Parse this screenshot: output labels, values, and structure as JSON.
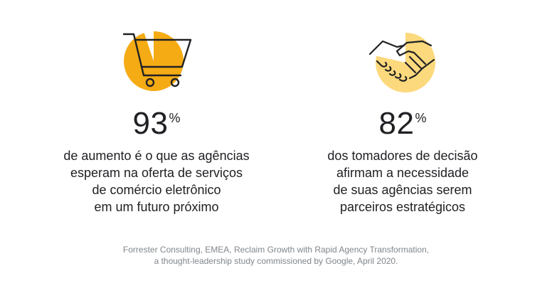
{
  "stats": [
    {
      "icon": "shopping-cart-icon",
      "accent": "#f5ab14",
      "value": "93",
      "unit": "%",
      "lines": [
        "de aumento é o que as agências",
        "esperam na oferta de serviços",
        "de comércio eletrônico",
        "em um futuro próximo"
      ]
    },
    {
      "icon": "handshake-icon",
      "accent": "#fcd97c",
      "value": "82",
      "unit": "%",
      "lines": [
        "dos tomadores de decisão",
        "afirmam a necessidade",
        "de suas agências serem",
        "parceiros estratégicos"
      ]
    }
  ],
  "source": {
    "lines": [
      "Forrester Consulting, EMEA, Reclaim Growth with Rapid Agency Transformation,",
      "a thought-leadership study commissioned by Google, April 2020."
    ]
  }
}
